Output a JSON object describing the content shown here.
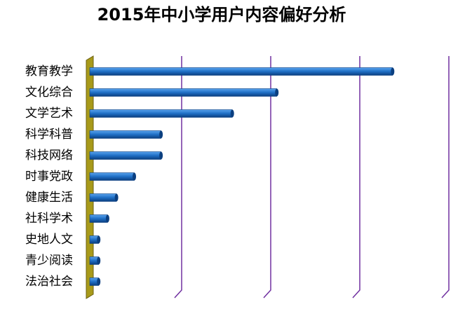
{
  "chart_data": {
    "type": "bar",
    "orientation": "horizontal",
    "title": "2015年中小学用户内容偏好分析",
    "categories": [
      "教育教学",
      "文化综合",
      "文学艺术",
      "科学科普",
      "科技网络",
      "时事党政",
      "健康生活",
      "社科学术",
      "史地人文",
      "青少阅读",
      "法治社会"
    ],
    "values": [
      34,
      21,
      16,
      8,
      8,
      5,
      3,
      2,
      1,
      1,
      1
    ],
    "color": "#1f6fc5",
    "xlim": [
      0,
      40
    ],
    "xticks": [
      0,
      10,
      20,
      30,
      40
    ],
    "grid": true,
    "grid_color": "#7030a0"
  }
}
